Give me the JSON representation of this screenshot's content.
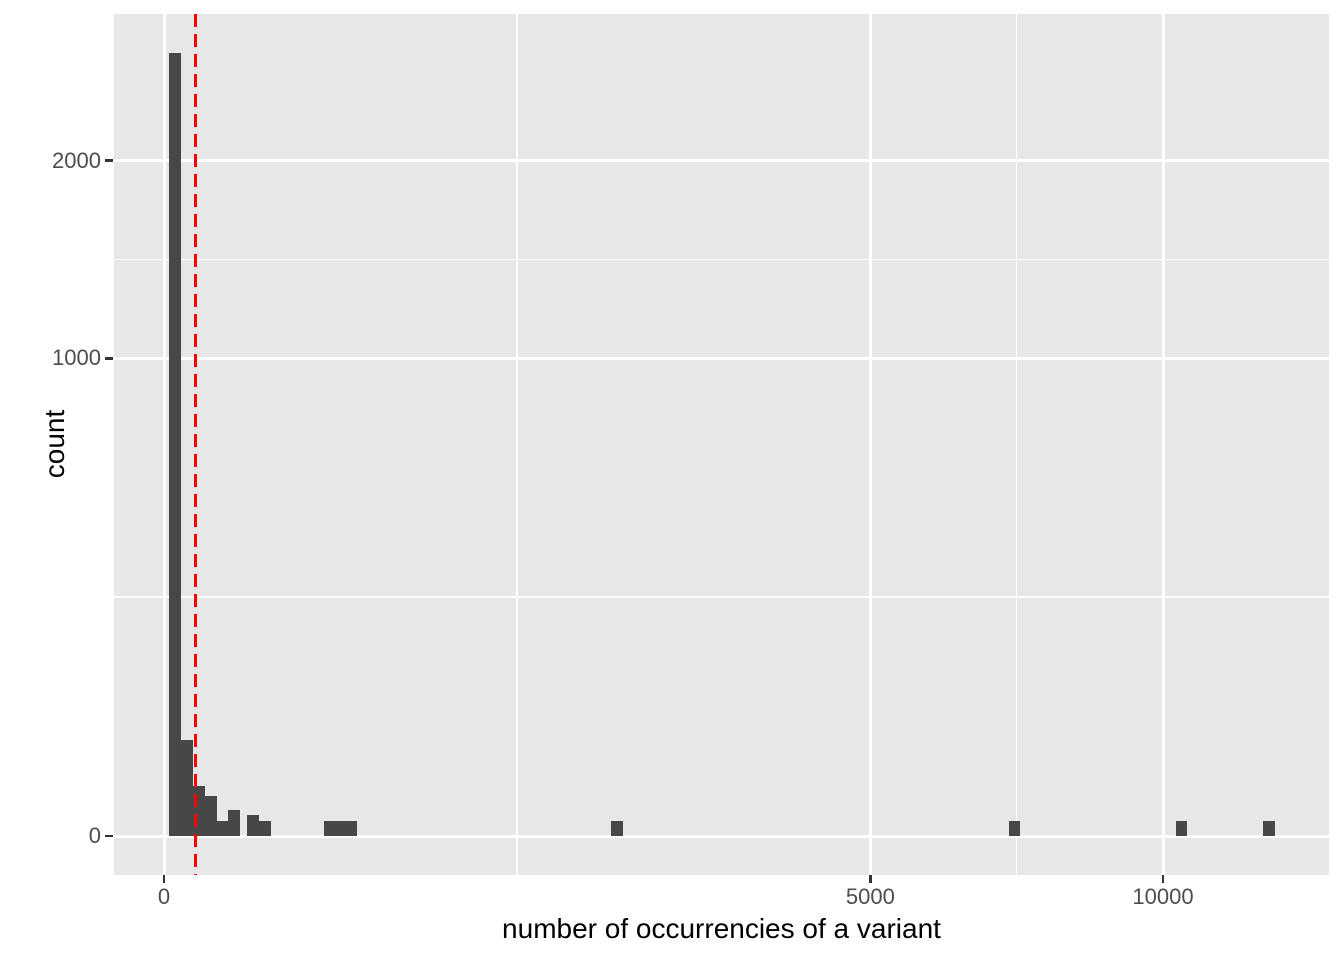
{
  "chart_data": {
    "type": "bar",
    "subtype": "histogram",
    "title": "",
    "xlabel": "number of occurrencies of a variant",
    "ylabel": "count",
    "x_scale": "sqrt",
    "y_scale": "sqrt",
    "x_ticks": [
      0,
      5000,
      10000
    ],
    "y_ticks": [
      0,
      1000,
      2000
    ],
    "x_range_data": [
      0,
      13500
    ],
    "y_range_data": [
      0,
      2975
    ],
    "grid": "on",
    "legend": "none",
    "bars": [
      {
        "x_from": 0.3,
        "x_to": 2.9,
        "count": 2690
      },
      {
        "x_from": 2.9,
        "x_to": 8.4,
        "count": 40
      },
      {
        "x_from": 8.4,
        "x_to": 16.8,
        "count": 11
      },
      {
        "x_from": 16.8,
        "x_to": 28.1,
        "count": 7
      },
      {
        "x_from": 28.1,
        "x_to": 41,
        "count": 1
      },
      {
        "x_from": 41,
        "x_to": 58,
        "count": 3
      },
      {
        "x_from": 69,
        "x_to": 90,
        "count": 2
      },
      {
        "x_from": 90,
        "x_to": 114,
        "count": 1
      },
      {
        "x_from": 256,
        "x_to": 292,
        "count": 1
      },
      {
        "x_from": 292,
        "x_to": 331,
        "count": 1
      },
      {
        "x_from": 331,
        "x_to": 372,
        "count": 1
      },
      {
        "x_from": 2000,
        "x_to": 2110,
        "count": 1
      },
      {
        "x_from": 7160,
        "x_to": 7340,
        "count": 1
      },
      {
        "x_from": 10260,
        "x_to": 10490,
        "count": 1
      },
      {
        "x_from": 12100,
        "x_to": 12365,
        "count": 1
      }
    ],
    "vline": {
      "x": 10,
      "color": "#ff0000",
      "linetype": "dashed"
    },
    "colors": {
      "bar_fill": "#474747",
      "panel_background": "#e7e7e7",
      "gridline": "#ffffff",
      "vline": "#ff0000",
      "tick_text": "#4d4d4d",
      "axis_title_text": "#000000",
      "tick_mark": "#333333",
      "outer_background": "#ffffff"
    }
  }
}
